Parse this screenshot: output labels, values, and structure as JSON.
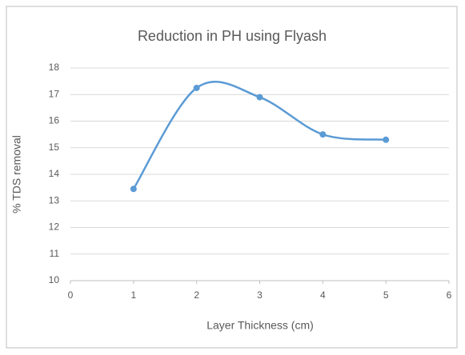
{
  "chart_data": {
    "type": "scatter_smooth",
    "title": "Reduction in PH using Flyash",
    "x_label": "Layer Thickness (cm)",
    "y_label": "% TDS removal",
    "series": [
      {
        "name": "% TDS removal",
        "color": "#5b9bd5",
        "x": [
          1,
          2,
          3,
          4,
          5
        ],
        "values": [
          13.45,
          17.25,
          16.9,
          15.5,
          15.3
        ]
      }
    ],
    "xlim": [
      0,
      6
    ],
    "xticks": [
      0,
      1,
      2,
      3,
      4,
      5,
      6
    ],
    "ylim": [
      10,
      18
    ],
    "yticks": [
      10,
      11,
      12,
      13,
      14,
      15,
      16,
      17,
      18
    ],
    "grid": true
  }
}
